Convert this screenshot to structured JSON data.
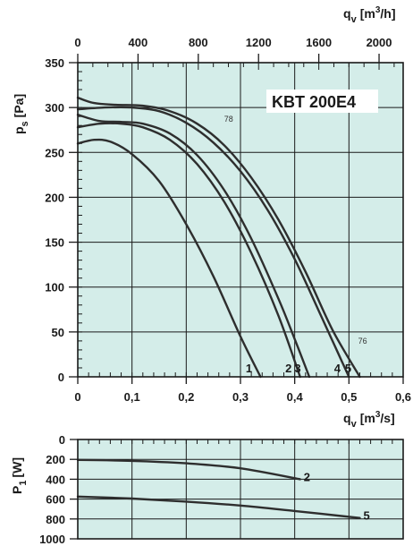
{
  "colors": {
    "plot_bg": "#d4ede9",
    "grid": "#1a1a1a",
    "curve": "#2e2e2e",
    "frame": "#1a1a1a"
  },
  "chart_data": [
    {
      "type": "line",
      "title": "KBT 200E4",
      "xlabel": "q_v [m³/s]",
      "xlabel_parts": {
        "base": "q",
        "sub": "v",
        "unit": "[m",
        "sup": "3",
        "unit_end": "/s]"
      },
      "x2label_parts": {
        "base": "q",
        "sub": "v",
        "unit": "[m",
        "sup": "3",
        "unit_end": "/h]"
      },
      "ylabel_parts": {
        "base": "p",
        "sub": "s",
        "unit": "[Pa]"
      },
      "xlim": [
        0,
        0.6
      ],
      "ylim": [
        0,
        350
      ],
      "x2lim": [
        0,
        2160
      ],
      "xticks": [
        "0",
        "0,1",
        "0,2",
        "0,3",
        "0,4",
        "0,5",
        "0,6"
      ],
      "xtick_values": [
        0,
        0.1,
        0.2,
        0.3,
        0.4,
        0.5,
        0.6
      ],
      "x2ticks": [
        "0",
        "400",
        "800",
        "1200",
        "1600",
        "2000"
      ],
      "x2tick_values": [
        0,
        400,
        800,
        1200,
        1600,
        2000
      ],
      "yticks": [
        "0",
        "50",
        "100",
        "150",
        "200",
        "250",
        "300",
        "350"
      ],
      "ytick_values": [
        0,
        50,
        100,
        150,
        200,
        250,
        300,
        350
      ],
      "grid": true,
      "annotations": [
        {
          "text": "78",
          "x": 0.27,
          "y": 284
        },
        {
          "text": "76",
          "x": 0.517,
          "y": 37
        }
      ],
      "series": [
        {
          "name": "1",
          "x": [
            0,
            0.03,
            0.06,
            0.1,
            0.15,
            0.2,
            0.25,
            0.3,
            0.337
          ],
          "y": [
            260,
            264,
            262,
            248,
            218,
            170,
            112,
            45,
            0
          ]
        },
        {
          "name": "2",
          "x": [
            0,
            0.04,
            0.08,
            0.12,
            0.17,
            0.22,
            0.27,
            0.32,
            0.37,
            0.41
          ],
          "y": [
            278,
            282,
            282,
            278,
            264,
            237,
            195,
            138,
            68,
            0
          ]
        },
        {
          "name": "3",
          "x": [
            0,
            0.04,
            0.08,
            0.12,
            0.17,
            0.22,
            0.27,
            0.32,
            0.37,
            0.4,
            0.427
          ],
          "y": [
            292,
            285,
            284,
            282,
            271,
            247,
            208,
            154,
            87,
            42,
            0
          ]
        },
        {
          "name": "4",
          "x": [
            0,
            0.05,
            0.1,
            0.15,
            0.2,
            0.25,
            0.3,
            0.35,
            0.4,
            0.45,
            0.5
          ],
          "y": [
            298,
            300,
            300,
            296,
            283,
            261,
            229,
            186,
            131,
            66,
            0
          ]
        },
        {
          "name": "5",
          "x": [
            0,
            0.03,
            0.07,
            0.12,
            0.17,
            0.22,
            0.27,
            0.32,
            0.37,
            0.42,
            0.47,
            0.52
          ],
          "y": [
            311,
            305,
            303,
            302,
            296,
            282,
            258,
            222,
            175,
            117,
            52,
            0
          ]
        }
      ]
    },
    {
      "type": "line",
      "ylabel_parts": {
        "base": "P",
        "sub": "1",
        "unit": "[W]"
      },
      "xlim": [
        0,
        0.6
      ],
      "ylim": [
        0,
        1000
      ],
      "y_inverted": true,
      "yticks": [
        "0",
        "200",
        "400",
        "600",
        "800",
        "1000"
      ],
      "ytick_values": [
        0,
        200,
        400,
        600,
        800,
        1000
      ],
      "grid": true,
      "series": [
        {
          "name": "2",
          "x": [
            0,
            0.1,
            0.2,
            0.3,
            0.41
          ],
          "y": [
            205,
            215,
            240,
            290,
            400
          ]
        },
        {
          "name": "5",
          "x": [
            0,
            0.1,
            0.2,
            0.3,
            0.4,
            0.52
          ],
          "y": [
            575,
            595,
            625,
            665,
            720,
            790
          ]
        }
      ]
    }
  ]
}
